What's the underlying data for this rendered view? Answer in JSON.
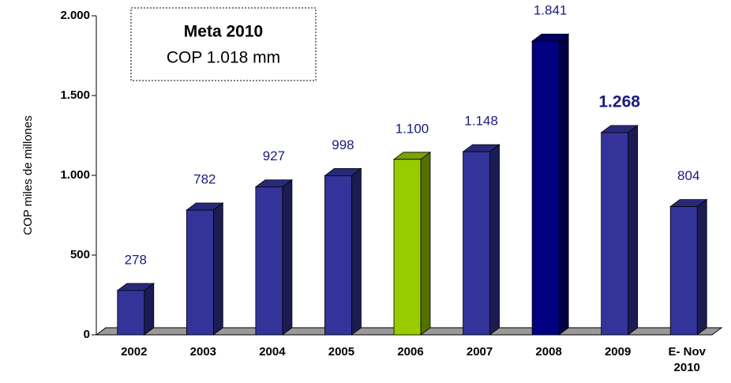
{
  "chart_data": {
    "type": "bar3d",
    "y_label": "COP   miles de millones",
    "annotation": {
      "title": "Meta 2010",
      "text": "COP 1.018 mm"
    },
    "categories": [
      "2002",
      "2003",
      "2004",
      "2005",
      "2006",
      "2007",
      "2008",
      "2009",
      "E- Nov 2010"
    ],
    "values": [
      278,
      782,
      927,
      998,
      1100,
      1148,
      1841,
      1268,
      804
    ],
    "value_labels": [
      "278",
      "782",
      "927",
      "998",
      "1.100",
      "1.148",
      "1.841",
      "1.268",
      "804"
    ],
    "value_label_bold": [
      false,
      false,
      false,
      false,
      false,
      false,
      false,
      true,
      false
    ],
    "colors": [
      "#333399",
      "#333399",
      "#333399",
      "#333399",
      "#99cc00",
      "#333399",
      "#000080",
      "#333399",
      "#333399"
    ],
    "ylim": [
      0,
      2000
    ],
    "yticks": [
      0,
      500,
      {
        "value": 1000,
        "label": "1.000"
      },
      {
        "value": 1500,
        "label": "1.500"
      },
      {
        "value": 2000,
        "label": "2.000"
      }
    ]
  }
}
